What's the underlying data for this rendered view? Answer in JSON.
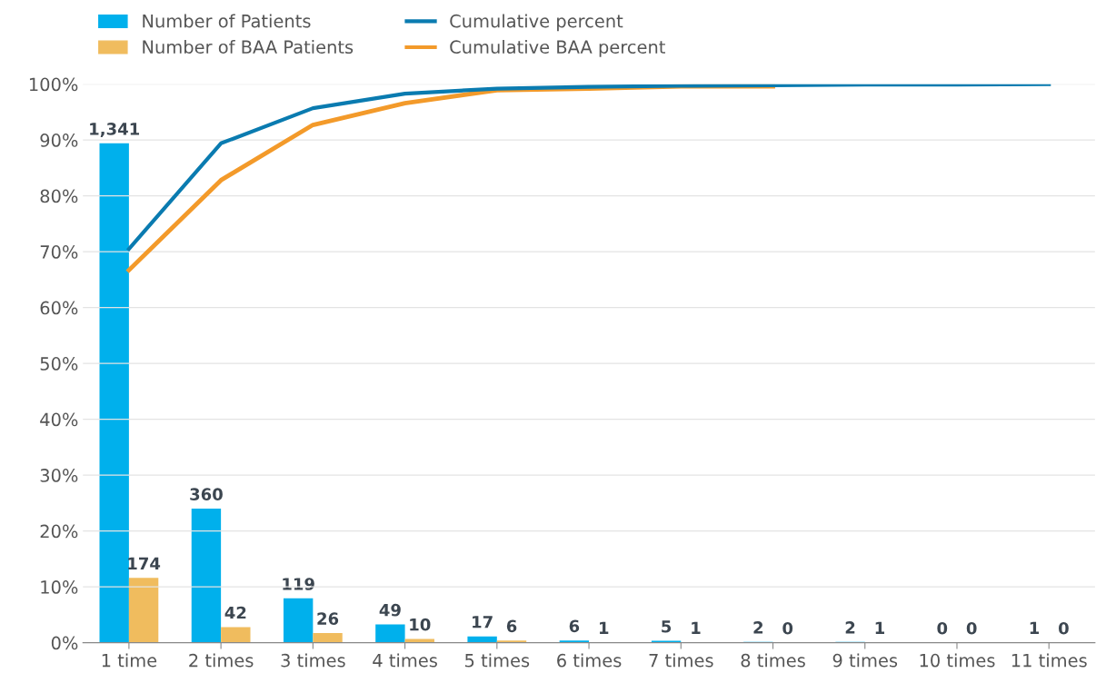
{
  "chart_data": {
    "type": "bar",
    "categories": [
      "1 time",
      "2 times",
      "3 times",
      "4 times",
      "5 times",
      "6 times",
      "7 times",
      "8 times",
      "9 times",
      "10 times",
      "11 times"
    ],
    "series": [
      {
        "name": "Number of Patients",
        "axis": "y2",
        "color": "#00b0ec",
        "values": [
          1341,
          360,
          119,
          49,
          17,
          6,
          5,
          2,
          2,
          0,
          1
        ],
        "value_labels": [
          "1,341",
          "360",
          "119",
          "49",
          "17",
          "6",
          "5",
          "2",
          "2",
          "0",
          "1"
        ]
      },
      {
        "name": "Number of BAA Patients",
        "axis": "y2",
        "color": "#f0bc5e",
        "values": [
          174,
          42,
          26,
          10,
          6,
          1,
          1,
          0,
          1,
          0,
          0
        ],
        "value_labels": [
          "174",
          "42",
          "26",
          "10",
          "6",
          "1",
          "1",
          "0",
          "1",
          "0",
          "0"
        ]
      },
      {
        "name": "Cumulative percent",
        "type": "line",
        "color": "#0a7bb0",
        "values": [
          70.5,
          89.4,
          95.7,
          98.3,
          99.2,
          99.5,
          99.7,
          99.8,
          99.9,
          99.9,
          100
        ]
      },
      {
        "name": "Cumulative BAA percent",
        "type": "line",
        "color": "#f39a2a",
        "values": [
          66.7,
          82.8,
          92.7,
          96.6,
          98.9,
          99.2,
          99.6,
          99.6,
          null,
          null,
          null
        ]
      }
    ],
    "ylim": [
      0,
      100
    ],
    "yticks": [
      {
        "value": 0,
        "label": "0%"
      },
      {
        "value": 10,
        "label": "10%"
      },
      {
        "value": 20,
        "label": "20%"
      },
      {
        "value": 30,
        "label": "30%"
      },
      {
        "value": 40,
        "label": "40%"
      },
      {
        "value": 50,
        "label": "50%"
      },
      {
        "value": 60,
        "label": "60%"
      },
      {
        "value": 70,
        "label": "70%"
      },
      {
        "value": 80,
        "label": "80%"
      },
      {
        "value": 90,
        "label": "90%"
      },
      {
        "value": 100,
        "label": "100%"
      }
    ],
    "y2lim": [
      0,
      1500
    ],
    "grid": "y",
    "legend": "top left",
    "marker": "none",
    "line_style": "solid"
  }
}
